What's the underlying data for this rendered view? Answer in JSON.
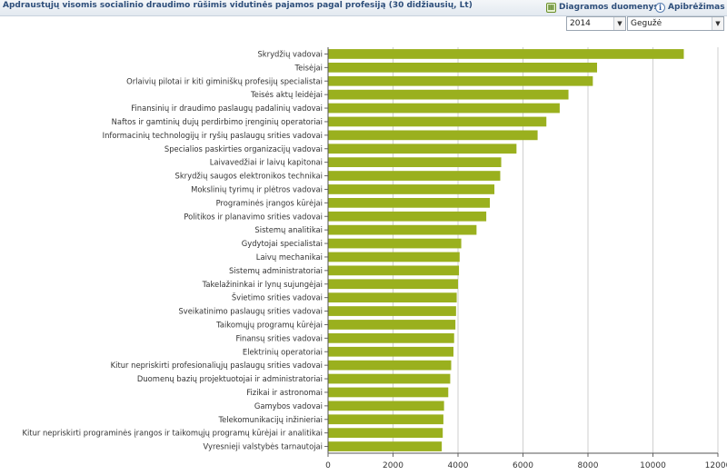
{
  "header": {
    "title": "Apdraustųjų visomis socialinio draudimo rūšimis vidutinės pajamos pagal profesiją (30 didžiausių, Lt)",
    "data_link": "Diagramos duomenys",
    "definition_link": "Apibrėžimas",
    "data_icon": "table-icon",
    "info_icon": "info-icon"
  },
  "filters": {
    "year": "2014",
    "month": "Gegužė"
  },
  "colors": {
    "bar": "#9ab01e",
    "header_text": "#2d4e7a",
    "grid": "#cfcfcf"
  },
  "chart_data": {
    "type": "bar",
    "orientation": "horizontal",
    "title": "Apdraustųjų visomis socialinio draudimo rūšimis vidutinės pajamos pagal profesiją (30 didžiausių, Lt)",
    "xlabel": "",
    "ylabel": "",
    "xlim": [
      0,
      12000
    ],
    "xticks": [
      0,
      2000,
      4000,
      6000,
      8000,
      10000,
      12000
    ],
    "grid": true,
    "categories": [
      "Skrydžių vadovai",
      "Teisėjai",
      "Orlaivių pilotai ir kiti giminiškų profesijų specialistai",
      "Teisės aktų leidėjai",
      "Finansinių ir draudimo paslaugų padalinių vadovai",
      "Naftos ir gamtinių dujų perdirbimo įrenginių operatoriai",
      "Informacinių technologijų ir ryšių paslaugų srities vadovai",
      "Specialios paskirties organizacijų vadovai",
      "Laivavedžiai ir laivų kapitonai",
      "Skrydžių saugos elektronikos technikai",
      "Mokslinių tyrimų ir plėtros vadovai",
      "Programinės įrangos kūrėjai",
      "Politikos ir planavimo srities vadovai",
      "Sistemų analitikai",
      "Gydytojai specialistai",
      "Laivų mechanikai",
      "Sistemų administratoriai",
      "Takelažininkai ir lynų sujungėjai",
      "Švietimo srities vadovai",
      "Sveikatinimo paslaugų srities vadovai",
      "Taikomųjų programų kūrėjai",
      "Finansų srities vadovai",
      "Elektrinių operatoriai",
      "Kitur nepriskirti profesionaliųjų paslaugų srities vadovai",
      "Duomenų bazių projektuotojai ir administratoriai",
      "Fizikai ir astronomai",
      "Gamybos vadovai",
      "Telekomunikacijų inžinieriai",
      "Kitur nepriskirti programinės įrangos ir taikomųjų programų kūrėjai ir analitikai",
      "Vyresnieji valstybės tarnautojai"
    ],
    "values": [
      10950,
      8280,
      8150,
      7400,
      7130,
      6720,
      6450,
      5800,
      5330,
      5300,
      5120,
      4980,
      4870,
      4570,
      4100,
      4050,
      4030,
      4000,
      3960,
      3940,
      3920,
      3880,
      3860,
      3790,
      3760,
      3700,
      3570,
      3550,
      3530,
      3500
    ]
  }
}
